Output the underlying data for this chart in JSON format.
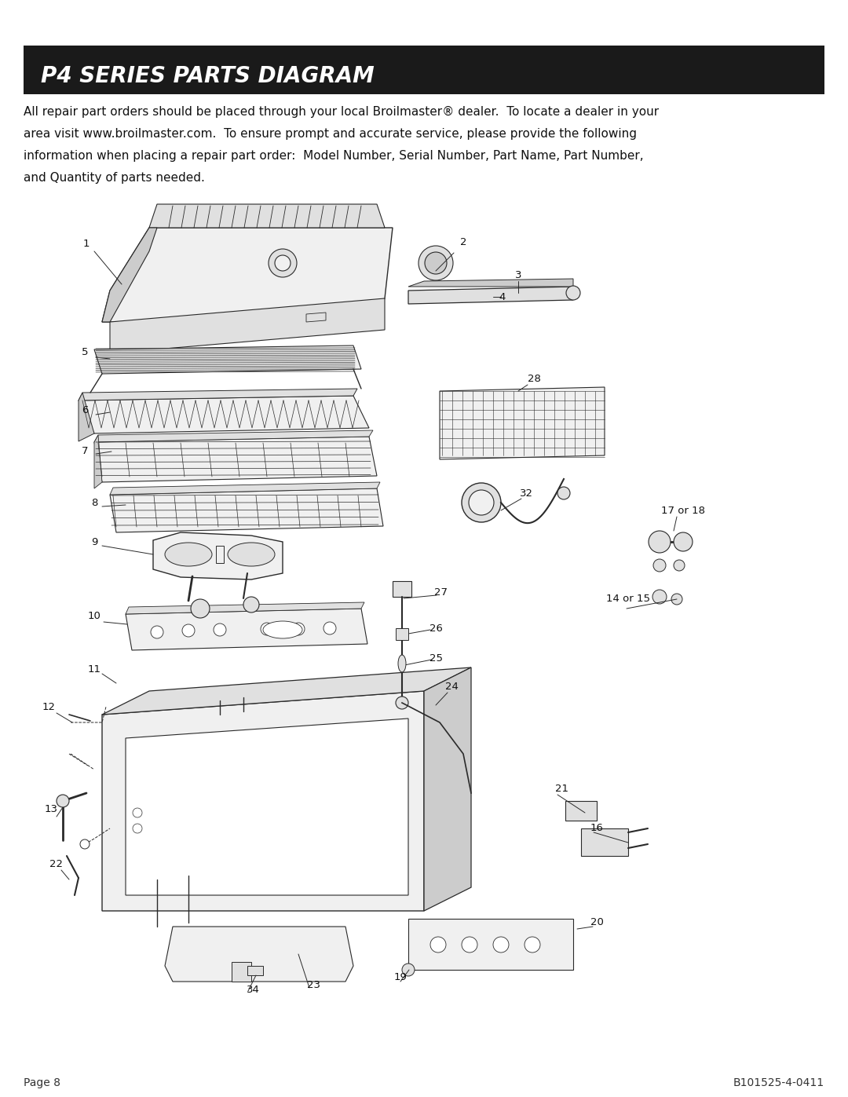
{
  "title": "P4 SERIES PARTS DIAGRAM",
  "title_bg": "#1a1a1a",
  "title_color": "#ffffff",
  "title_fontsize": 20,
  "body_lines": [
    "All repair part orders should be placed through your local Broilmaster® dealer.  To locate a dealer in your",
    "area visit www.broilmaster.com.  To ensure prompt and accurate service, please provide the following",
    "information when placing a repair part order:  Model Number, Serial Number, Part Name, Part Number,",
    "and Quantity of parts needed."
  ],
  "body_fontsize": 11.0,
  "footer_left": "Page 8",
  "footer_right": "B101525-4-0411",
  "footer_fontsize": 10,
  "bg_color": "#ffffff",
  "line_color": "#2a2a2a",
  "fill_light": "#f0f0f0",
  "fill_mid": "#e0e0e0",
  "fill_dark": "#cccccc"
}
